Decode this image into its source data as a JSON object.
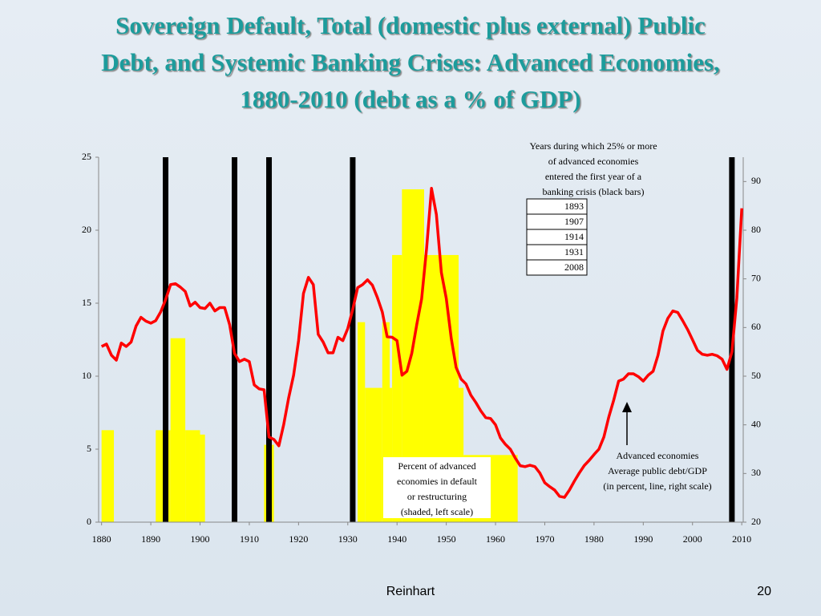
{
  "chart_data": {
    "type": "combo",
    "title": [
      "Sovereign Default, Total (domestic plus external) Public",
      "Debt, and Systemic Banking Crises: Advanced Economies,",
      "1880-2010 (debt as a % of GDP)"
    ],
    "xlim": [
      1879.4,
      2010.3
    ],
    "xticks": [
      1880,
      1890,
      1900,
      1910,
      1920,
      1930,
      1940,
      1950,
      1960,
      1970,
      1980,
      1990,
      2000,
      2010
    ],
    "ylim": [
      0,
      25
    ],
    "yticks": [
      0,
      5,
      10,
      15,
      20,
      25
    ],
    "y2lim": [
      20,
      95
    ],
    "y2ticks": [
      20,
      30,
      40,
      50,
      60,
      70,
      80,
      90
    ],
    "histogram": {
      "color": "#ffff00",
      "bins": [
        1880,
        1882.5,
        1891,
        1894,
        1897,
        1900,
        1901,
        1913,
        1915,
        1932,
        1933.5,
        1937,
        1938.5,
        1939,
        1941,
        1945.5,
        1952.5,
        1953.5,
        1964.5,
        2010
      ],
      "values": [
        6.3,
        0,
        6.3,
        12.6,
        6.3,
        6,
        0,
        5.3,
        0,
        13.7,
        9.2,
        13.7,
        9.2,
        18.3,
        22.8,
        18.3,
        9.2,
        4.6,
        0
      ]
    },
    "line": {
      "color": "#ff0000",
      "axis": "y2",
      "x": [
        1880,
        1881,
        1882,
        1883,
        1884,
        1885,
        1886,
        1887,
        1888,
        1889,
        1890,
        1891,
        1892,
        1893,
        1894,
        1895,
        1896,
        1897,
        1898,
        1899,
        1900,
        1901,
        1902,
        1903,
        1904,
        1905,
        1906,
        1907,
        1908,
        1909,
        1910,
        1911,
        1912,
        1913,
        1914,
        1915,
        1916,
        1917,
        1918,
        1919,
        1920,
        1921,
        1922,
        1923,
        1924,
        1925,
        1926,
        1927,
        1928,
        1929,
        1930,
        1931,
        1932,
        1933,
        1934,
        1935,
        1936,
        1937,
        1938,
        1939,
        1940,
        1941,
        1942,
        1943,
        1944,
        1945,
        1946,
        1947,
        1948,
        1949,
        1950,
        1951,
        1952,
        1953,
        1954,
        1955,
        1956,
        1957,
        1958,
        1959,
        1960,
        1961,
        1962,
        1963,
        1964,
        1965,
        1966,
        1967,
        1968,
        1969,
        1970,
        1971,
        1972,
        1973,
        1974,
        1975,
        1976,
        1977,
        1978,
        1979,
        1980,
        1981,
        1982,
        1983,
        1984,
        1985,
        1986,
        1987,
        1988,
        1989,
        1990,
        1991,
        1992,
        1993,
        1994,
        1995,
        1996,
        1997,
        1998,
        1999,
        2000,
        2001,
        2002,
        2003,
        2004,
        2005,
        2006,
        2007,
        2008,
        2009,
        2010
      ],
      "values": [
        56.1,
        56.6,
        54.3,
        53.3,
        56.8,
        56.1,
        57,
        60.3,
        62.1,
        61.3,
        60.9,
        61.4,
        63.2,
        65.7,
        68.8,
        69,
        68.3,
        67.4,
        64.4,
        65.2,
        64.1,
        63.9,
        65,
        63.4,
        64.1,
        64.1,
        60.6,
        54.7,
        53,
        53.5,
        53,
        48.2,
        47.4,
        47.2,
        37.5,
        37,
        35.7,
        40.1,
        45.6,
        50.2,
        57.3,
        67,
        70.3,
        68.8,
        58.6,
        57,
        54.8,
        54.8,
        58,
        57.3,
        59.8,
        63.7,
        68.2,
        68.8,
        69.8,
        68.7,
        66.2,
        63.2,
        58.1,
        58,
        57.3,
        50.2,
        51,
        54.7,
        60.6,
        65.9,
        76.3,
        88.6,
        83.2,
        71.3,
        66,
        57.8,
        51.8,
        49.4,
        48.4,
        46.1,
        44.6,
        42.9,
        41.5,
        41.3,
        40,
        37.3,
        36,
        35,
        33.2,
        31.6,
        31.4,
        31.7,
        31.4,
        30.1,
        28.1,
        27.3,
        26.6,
        25.3,
        25.1,
        26.6,
        28.4,
        30.1,
        31.6,
        32.7,
        33.9,
        35,
        37.5,
        41.6,
        45.1,
        49,
        49.4,
        50.5,
        50.5,
        49.9,
        49,
        50.2,
        51,
        54.3,
        59.3,
        61.9,
        63.4,
        63.1,
        61.4,
        59.6,
        57.5,
        55.3,
        54.5,
        54.3,
        54.5,
        54.2,
        53.5,
        51.4,
        55,
        66,
        84.5
      ]
    },
    "crisis_color": "#000000",
    "crisis_caption": [
      "Years during which 25% or more",
      "of advanced economies",
      "entered the first year of a",
      "banking crisis (black bars)"
    ],
    "crisis_years": [
      1893,
      1907,
      1914,
      1931,
      2008
    ],
    "default_annotation": [
      "Percent of advanced",
      "economies in default",
      "or restructuring",
      "(shaded, left scale)"
    ],
    "debt_annotation": [
      "Advanced economies",
      "Average public debt/GDP",
      "(in percent, line, right scale)"
    ]
  },
  "footer": {
    "author": "Reinhart",
    "page": "20"
  }
}
